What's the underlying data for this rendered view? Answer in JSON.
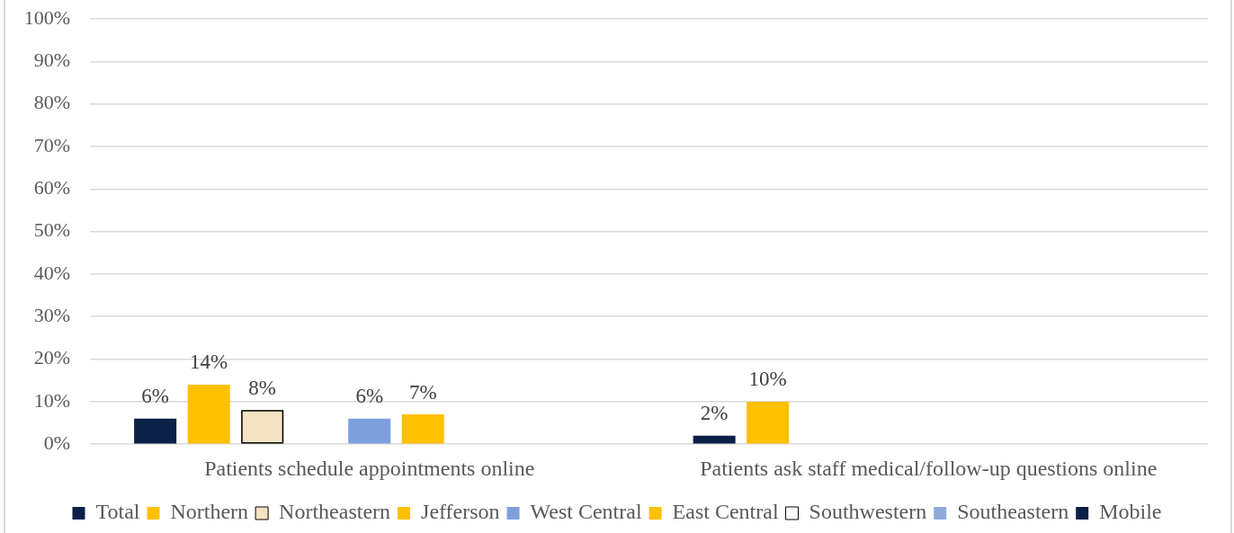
{
  "chart_data": {
    "type": "bar",
    "categories": [
      "Patients schedule appointments online",
      "Patients ask staff medical/follow-up questions online"
    ],
    "series": [
      {
        "name": "Total",
        "color": "#0c2046",
        "values": [
          6,
          2
        ],
        "value_labels": [
          "6%",
          "2%"
        ]
      },
      {
        "name": "Northern",
        "color": "#ffc000",
        "values": [
          14,
          10
        ],
        "value_labels": [
          "14%",
          "10%"
        ]
      },
      {
        "name": "Northeastern",
        "color": "#f5e3c3",
        "values": [
          8,
          null
        ],
        "value_labels": [
          "8%",
          null
        ]
      },
      {
        "name": "Jefferson",
        "color": "#ffc000",
        "values": [
          null,
          null
        ]
      },
      {
        "name": "West Central",
        "color": "#7f9fdc",
        "values": [
          6,
          null
        ],
        "value_labels": [
          "6%",
          null
        ]
      },
      {
        "name": "East Central",
        "color": "#ffc000",
        "values": [
          7,
          null
        ],
        "value_labels": [
          "7%",
          null
        ]
      },
      {
        "name": "Southwestern",
        "color": "#ffffff",
        "values": [
          null,
          null
        ]
      },
      {
        "name": "Southeastern",
        "color": "#8faadc",
        "values": [
          null,
          null
        ]
      },
      {
        "name": "Mobile",
        "color": "#0c2046",
        "values": [
          null,
          null
        ]
      }
    ],
    "ylim": [
      0,
      100
    ],
    "yticks": [
      {
        "value": 0,
        "label": "0%"
      },
      {
        "value": 10,
        "label": "10%"
      },
      {
        "value": 20,
        "label": "20%"
      },
      {
        "value": 30,
        "label": "30%"
      },
      {
        "value": 40,
        "label": "40%"
      },
      {
        "value": 50,
        "label": "50%"
      },
      {
        "value": 60,
        "label": "60%"
      },
      {
        "value": 70,
        "label": "70%"
      },
      {
        "value": 80,
        "label": "80%"
      },
      {
        "value": 90,
        "label": "90%"
      },
      {
        "value": 100,
        "label": "100%"
      }
    ],
    "grid": "y",
    "legend": "bottom"
  }
}
